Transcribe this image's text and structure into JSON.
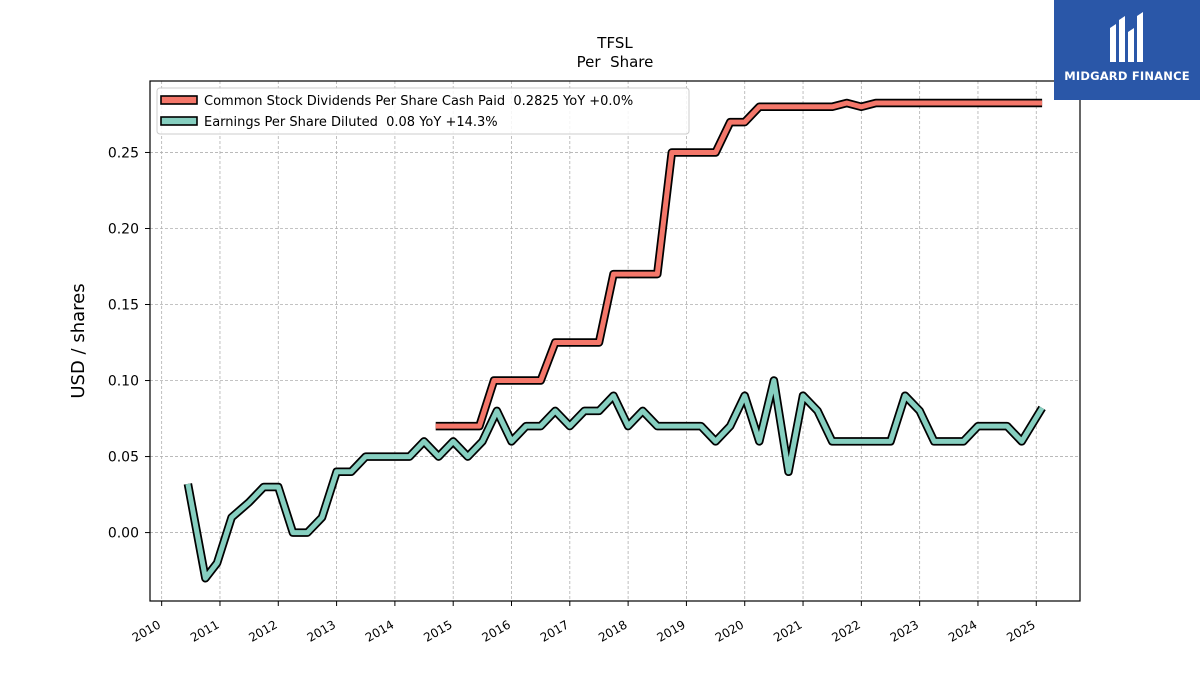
{
  "brand": {
    "name": "MIDGARD FINANCE",
    "bg_color": "#2a57a8"
  },
  "chart_data": {
    "type": "line",
    "title": "TFSL",
    "subtitle": "Per  Share",
    "xlabel": "",
    "ylabel": "USD / shares",
    "xlim": [
      2009.8,
      2025.75
    ],
    "ylim": [
      -0.045,
      0.297
    ],
    "yticks": [
      0.0,
      0.05,
      0.1,
      0.15,
      0.2,
      0.25
    ],
    "ytick_labels": [
      "0.00",
      "0.05",
      "0.10",
      "0.15",
      "0.20",
      "0.25"
    ],
    "xticks": [
      "2010",
      "2011",
      "2012",
      "2013",
      "2014",
      "2015",
      "2016",
      "2017",
      "2018",
      "2019",
      "2020",
      "2021",
      "2022",
      "2023",
      "2024",
      "2025"
    ],
    "grid": true,
    "legend_position": "top-left",
    "series": [
      {
        "name": "Common Stock Dividends Per Share Cash Paid  0.2825 YoY +0.0%",
        "color": "#f4776a",
        "x": [
          2014.7,
          2015.45,
          2015.7,
          2016.5,
          2016.75,
          2017.5,
          2017.75,
          2018.5,
          2018.75,
          2019.5,
          2019.75,
          2020.0,
          2020.25,
          2021.0,
          2021.5,
          2021.75,
          2022.0,
          2022.25,
          2023.0,
          2024.0,
          2025.1
        ],
        "y": [
          0.07,
          0.07,
          0.1,
          0.1,
          0.125,
          0.125,
          0.17,
          0.17,
          0.25,
          0.25,
          0.27,
          0.27,
          0.28,
          0.28,
          0.28,
          0.2825,
          0.28,
          0.2825,
          0.2825,
          0.2825,
          0.2825
        ]
      },
      {
        "name": "Earnings Per Share Diluted  0.08 YoY +14.3%",
        "color": "#86cfc0",
        "x": [
          2010.45,
          2010.75,
          2010.95,
          2011.2,
          2011.5,
          2011.75,
          2012.0,
          2012.25,
          2012.5,
          2012.75,
          2013.0,
          2013.25,
          2013.5,
          2013.75,
          2014.0,
          2014.25,
          2014.5,
          2014.75,
          2015.0,
          2015.25,
          2015.5,
          2015.75,
          2016.0,
          2016.25,
          2016.5,
          2016.75,
          2017.0,
          2017.25,
          2017.5,
          2017.75,
          2018.0,
          2018.25,
          2018.5,
          2018.75,
          2019.0,
          2019.25,
          2019.5,
          2019.75,
          2020.0,
          2020.25,
          2020.5,
          2020.75,
          2021.0,
          2021.25,
          2021.5,
          2021.75,
          2022.0,
          2022.25,
          2022.5,
          2022.75,
          2023.0,
          2023.25,
          2023.5,
          2023.75,
          2024.0,
          2024.25,
          2024.5,
          2024.75,
          2025.1
        ],
        "y": [
          0.032,
          -0.03,
          -0.02,
          0.01,
          0.02,
          0.03,
          0.03,
          0.0,
          0.0,
          0.01,
          0.04,
          0.04,
          0.05,
          0.05,
          0.05,
          0.05,
          0.06,
          0.05,
          0.06,
          0.05,
          0.06,
          0.08,
          0.06,
          0.07,
          0.07,
          0.08,
          0.07,
          0.08,
          0.08,
          0.09,
          0.07,
          0.08,
          0.07,
          0.07,
          0.07,
          0.07,
          0.06,
          0.07,
          0.09,
          0.06,
          0.1,
          0.04,
          0.09,
          0.08,
          0.06,
          0.06,
          0.06,
          0.06,
          0.06,
          0.09,
          0.08,
          0.06,
          0.06,
          0.06,
          0.07,
          0.07,
          0.07,
          0.06,
          0.082
        ]
      }
    ]
  }
}
